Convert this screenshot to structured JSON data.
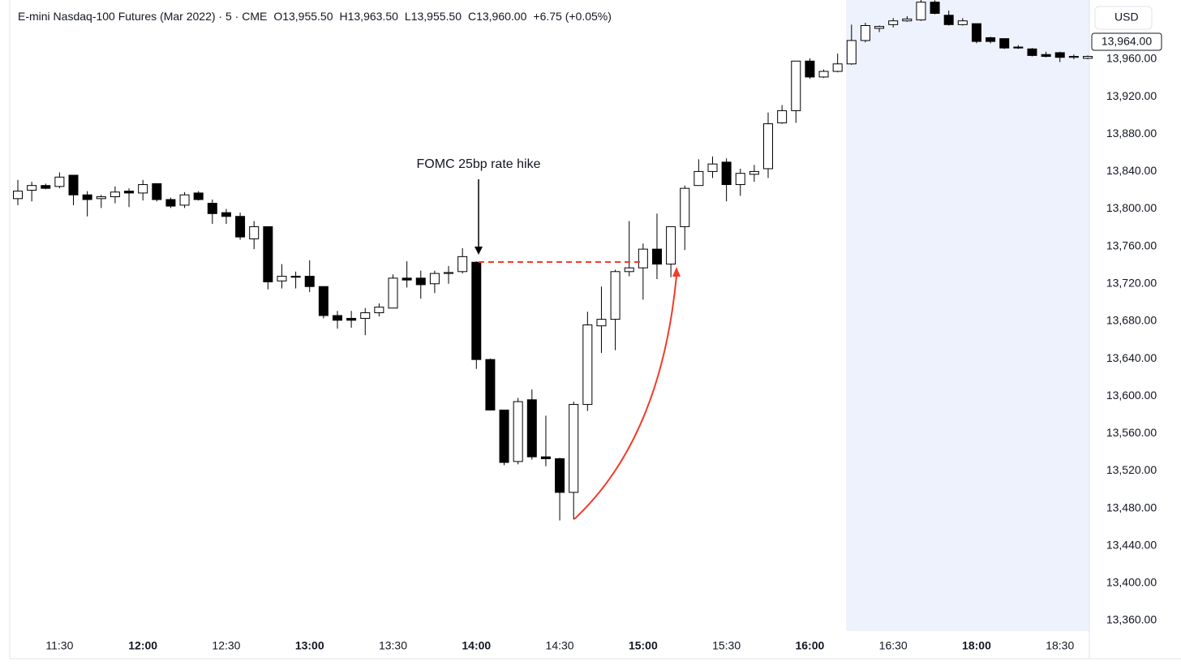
{
  "header": {
    "symbol": "E-mini Nasdaq-100 Futures (Mar 2022) · 5 · CME",
    "open": "O13,955.50",
    "high": "H13,963.50",
    "low": "L13,955.50",
    "close": "C13,960.00",
    "change": "+6.75 (+0.05%)"
  },
  "price_scale": {
    "currency": "USD",
    "last_price_tag": "13,964.00"
  },
  "chart_data": {
    "type": "candlestick",
    "annotation": "FOMC 25bp rate hike",
    "categories": [
      null,
      null,
      null,
      "11:30",
      null,
      null,
      null,
      null,
      null,
      "12:00",
      null,
      null,
      null,
      null,
      null,
      "12:30",
      null,
      null,
      null,
      null,
      null,
      "13:00",
      null,
      null,
      null,
      null,
      null,
      "13:30",
      null,
      null,
      null,
      null,
      null,
      "14:00",
      null,
      null,
      null,
      null,
      null,
      "14:30",
      null,
      null,
      null,
      null,
      null,
      "15:00",
      null,
      null,
      null,
      null,
      null,
      "15:30",
      null,
      null,
      null,
      null,
      null,
      "16:00",
      null,
      null,
      null,
      null,
      null,
      "16:30",
      null,
      null,
      null,
      null,
      null,
      "18:00",
      null,
      null,
      null,
      null,
      null,
      "18:30",
      null,
      null
    ],
    "open": [
      13811,
      13820,
      13825,
      13824,
      13836,
      13815,
      13811,
      13813,
      13819,
      13817,
      13827,
      13810,
      13804,
      13817,
      13806,
      13796,
      13792,
      13768,
      13781,
      13723,
      13728,
      13728,
      13717,
      13686,
      13683,
      13683,
      13689,
      13694,
      13726,
      13726,
      13720,
      13731,
      13733,
      13743,
      13639,
      13585,
      13530,
      13596,
      13535,
      13533,
      13497,
      13591,
      13675,
      13682,
      13733,
      13737,
      13757,
      13741,
      13781,
      13825,
      13840,
      13850,
      13826,
      13837,
      13843,
      13892,
      13905,
      13958,
      13941,
      13947,
      13955,
      13980,
      13993,
      13997,
      14001,
      14002,
      14021,
      14007,
      13997,
      13998,
      13983,
      13982,
      13973,
      13971,
      13965,
      13967,
      13962,
      13961
    ],
    "high": [
      13831,
      13829,
      13827,
      13839,
      13836,
      13819,
      13815,
      13824,
      13822,
      13831,
      13827,
      13812,
      13818,
      13819,
      13810,
      13800,
      13796,
      13787,
      13781,
      13741,
      13733,
      13745,
      13717,
      13691,
      13691,
      13694,
      13699,
      13730,
      13744,
      13734,
      13734,
      13739,
      13758,
      13744,
      13640,
      13585,
      13598,
      13607,
      13579,
      13534,
      13594,
      13690,
      13717,
      13735,
      13787,
      13763,
      13795,
      13781,
      13825,
      13853,
      13856,
      13854,
      13843,
      13847,
      13903,
      13911,
      13958,
      13961,
      13949,
      13966,
      13997,
      13999,
      13996,
      14004,
      14006,
      14025,
      14023,
      14012,
      14004,
      13998,
      13984,
      13982,
      13975,
      13972,
      13968,
      13968,
      13965,
      13964
    ],
    "low": [
      13804,
      13808,
      13821,
      13822,
      13804,
      13792,
      13801,
      13806,
      13802,
      13809,
      13808,
      13801,
      13801,
      13809,
      13784,
      13784,
      13767,
      13757,
      13714,
      13715,
      13715,
      13711,
      13683,
      13672,
      13673,
      13665,
      13685,
      13694,
      13716,
      13704,
      13710,
      13720,
      13731,
      13629,
      13585,
      13526,
      13527,
      13532,
      13525,
      13467,
      13468,
      13584,
      13646,
      13649,
      13728,
      13703,
      13725,
      13727,
      13756,
      13825,
      13833,
      13808,
      13814,
      13829,
      13833,
      13891,
      13892,
      13939,
      13940,
      13946,
      13954,
      13978,
      13989,
      13994,
      14000,
      14001,
      14008,
      13996,
      13996,
      13977,
      13977,
      13971,
      13971,
      13963,
      13962,
      13957,
      13960,
      13960
    ],
    "close": [
      13819,
      13825,
      13822,
      13834,
      13815,
      13810,
      13813,
      13818,
      13817,
      13826,
      13810,
      13803,
      13815,
      13810,
      13795,
      13792,
      13770,
      13781,
      13722,
      13728,
      13727,
      13717,
      13686,
      13681,
      13681,
      13689,
      13695,
      13726,
      13724,
      13719,
      13731,
      13732,
      13749,
      13639,
      13585,
      13529,
      13594,
      13535,
      13533,
      13497,
      13591,
      13676,
      13682,
      13733,
      13737,
      13757,
      13741,
      13781,
      13822,
      13840,
      13848,
      13826,
      13838,
      13840,
      13891,
      13905,
      13958,
      13941,
      13947,
      13955,
      13980,
      13996,
      13995,
      14001,
      14003,
      14021,
      14009,
      13997,
      14001,
      13979,
      13979,
      13972,
      13972,
      13964,
      13963,
      13962,
      13963,
      13963
    ],
    "colors": {
      "up": "#ffffff",
      "down": "#000000",
      "outline": "#000000"
    },
    "ylim": [
      13348.7,
      14023.3
    ],
    "yticks": [
      {
        "value": 13360,
        "label": "13,360.00"
      },
      {
        "value": 13400,
        "label": "13,400.00"
      },
      {
        "value": 13440,
        "label": "13,440.00"
      },
      {
        "value": 13480,
        "label": "13,480.00"
      },
      {
        "value": 13520,
        "label": "13,520.00"
      },
      {
        "value": 13560,
        "label": "13,560.00"
      },
      {
        "value": 13600,
        "label": "13,600.00"
      },
      {
        "value": 13640,
        "label": "13,640.00"
      },
      {
        "value": 13680,
        "label": "13,680.00"
      },
      {
        "value": 13720,
        "label": "13,720.00"
      },
      {
        "value": 13760,
        "label": "13,760.00"
      },
      {
        "value": 13800,
        "label": "13,800.00"
      },
      {
        "value": 13840,
        "label": "13,840.00"
      },
      {
        "value": 13880,
        "label": "13,880.00"
      },
      {
        "value": 13920,
        "label": "13,920.00"
      },
      {
        "value": 13960,
        "label": "13,960.00"
      }
    ],
    "grid": false
  }
}
